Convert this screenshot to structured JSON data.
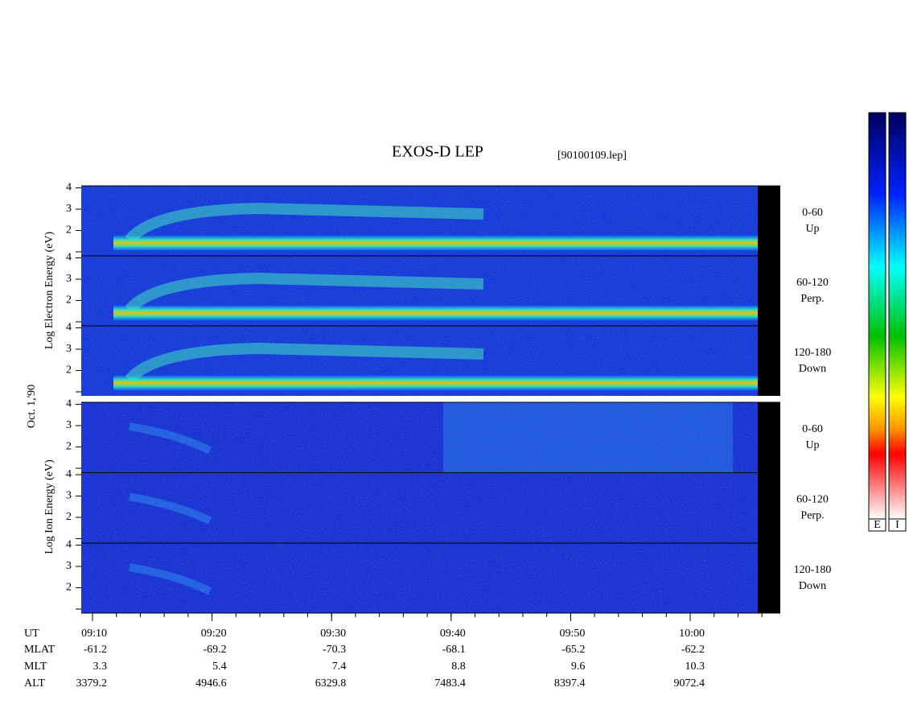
{
  "header": {
    "title": "EXOS-D LEP",
    "file": "[90100109.lep]"
  },
  "date": "Oct. 1,'90",
  "electron": {
    "ylabel": "Log  Electron  Energy  (eV)",
    "panels": [
      {
        "range": "0-60",
        "dir": "Up"
      },
      {
        "range": "60-120",
        "dir": "Perp."
      },
      {
        "range": "120-180",
        "dir": "Down"
      }
    ]
  },
  "ion": {
    "ylabel": "Log  Ion  Energy  (eV)",
    "panels": [
      {
        "range": "0-60",
        "dir": "Up"
      },
      {
        "range": "60-120",
        "dir": "Perp."
      },
      {
        "range": "120-180",
        "dir": "Down"
      }
    ]
  },
  "yticks": [
    2,
    3,
    4
  ],
  "xaxis": {
    "label": "UT",
    "ticks": [
      "09:10",
      "09:20",
      "09:30",
      "09:40",
      "09:50",
      "10:00"
    ]
  },
  "rows": [
    {
      "label": "MLAT",
      "values": [
        -61.2,
        -69.2,
        -70.3,
        -68.1,
        -65.2,
        -62.2
      ]
    },
    {
      "label": "MLT",
      "values": [
        3.3,
        5.4,
        7.4,
        8.8,
        9.6,
        10.3
      ]
    },
    {
      "label": "ALT",
      "values": [
        3379.2,
        4946.6,
        6329.8,
        7483.4,
        8397.4,
        9072.4
      ]
    }
  ],
  "colorbar": {
    "labels": [
      "E",
      "I"
    ]
  }
}
